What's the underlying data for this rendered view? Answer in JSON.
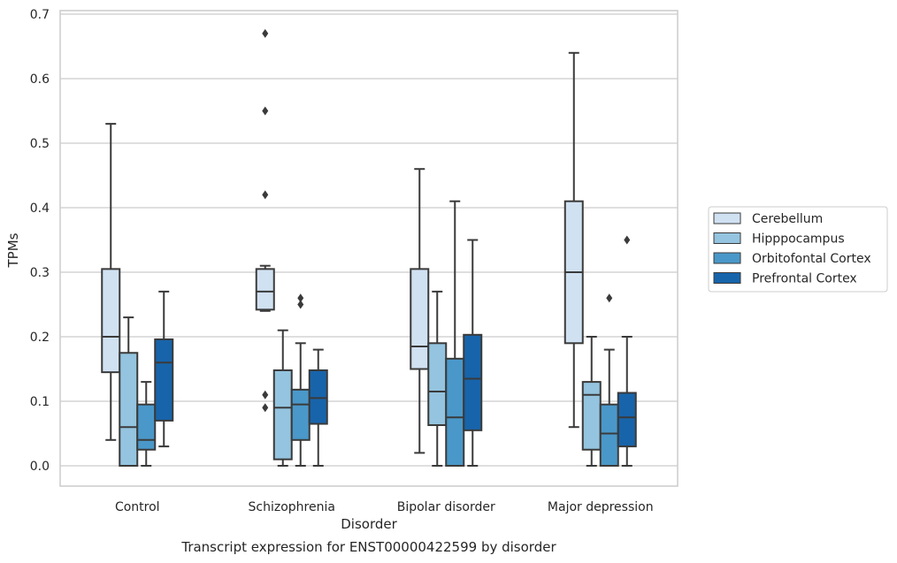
{
  "chart_data": {
    "type": "box",
    "caption": "Transcript expression for ENST00000422599 by disorder",
    "xlabel": "Disorder",
    "ylabel": "TPMs",
    "ylim": [
      -0.03,
      0.705
    ],
    "yticks": [
      "0.0",
      "0.1",
      "0.2",
      "0.3",
      "0.4",
      "0.5",
      "0.6",
      "0.7"
    ],
    "grid": "horizontal",
    "legend_position": "right",
    "categories": [
      "Control",
      "Schizophrenia",
      "Bipolar disorder",
      "Major depression"
    ],
    "series": [
      {
        "name": "Cerebellum",
        "color": "#d0e1f2",
        "boxes": [
          {
            "whislo": 0.04,
            "q1": 0.145,
            "med": 0.2,
            "q3": 0.305,
            "whishi": 0.53,
            "fliers": []
          },
          {
            "whislo": 0.24,
            "q1": 0.242,
            "med": 0.27,
            "q3": 0.305,
            "whishi": 0.31,
            "fliers": [
              0.09,
              0.11,
              0.42,
              0.55,
              0.67
            ]
          },
          {
            "whislo": 0.02,
            "q1": 0.15,
            "med": 0.185,
            "q3": 0.305,
            "whishi": 0.46,
            "fliers": []
          },
          {
            "whislo": 0.06,
            "q1": 0.19,
            "med": 0.3,
            "q3": 0.41,
            "whishi": 0.64,
            "fliers": []
          }
        ]
      },
      {
        "name": "Hipppocampus",
        "color": "#94c4df",
        "boxes": [
          {
            "whislo": 0.0,
            "q1": 0.0,
            "med": 0.06,
            "q3": 0.175,
            "whishi": 0.23,
            "fliers": []
          },
          {
            "whislo": 0.0,
            "q1": 0.01,
            "med": 0.09,
            "q3": 0.148,
            "whishi": 0.21,
            "fliers": []
          },
          {
            "whislo": 0.0,
            "q1": 0.063,
            "med": 0.115,
            "q3": 0.19,
            "whishi": 0.27,
            "fliers": []
          },
          {
            "whislo": 0.0,
            "q1": 0.025,
            "med": 0.11,
            "q3": 0.13,
            "whishi": 0.2,
            "fliers": []
          }
        ]
      },
      {
        "name": "Orbitofontal Cortex",
        "color": "#4a98c9",
        "boxes": [
          {
            "whislo": 0.0,
            "q1": 0.025,
            "med": 0.04,
            "q3": 0.095,
            "whishi": 0.13,
            "fliers": []
          },
          {
            "whislo": 0.0,
            "q1": 0.04,
            "med": 0.095,
            "q3": 0.118,
            "whishi": 0.19,
            "fliers": [
              0.25,
              0.26
            ]
          },
          {
            "whislo": 0.0,
            "q1": 0.0,
            "med": 0.075,
            "q3": 0.166,
            "whishi": 0.41,
            "fliers": []
          },
          {
            "whislo": 0.0,
            "q1": 0.0,
            "med": 0.05,
            "q3": 0.095,
            "whishi": 0.18,
            "fliers": [
              0.26
            ]
          }
        ]
      },
      {
        "name": "Prefrontal Cortex",
        "color": "#1764ab",
        "boxes": [
          {
            "whislo": 0.03,
            "q1": 0.07,
            "med": 0.16,
            "q3": 0.196,
            "whishi": 0.27,
            "fliers": []
          },
          {
            "whislo": 0.0,
            "q1": 0.065,
            "med": 0.105,
            "q3": 0.148,
            "whishi": 0.18,
            "fliers": []
          },
          {
            "whislo": 0.0,
            "q1": 0.055,
            "med": 0.135,
            "q3": 0.203,
            "whishi": 0.35,
            "fliers": []
          },
          {
            "whislo": 0.0,
            "q1": 0.03,
            "med": 0.075,
            "q3": 0.113,
            "whishi": 0.2,
            "fliers": [
              0.35
            ]
          }
        ]
      }
    ]
  }
}
